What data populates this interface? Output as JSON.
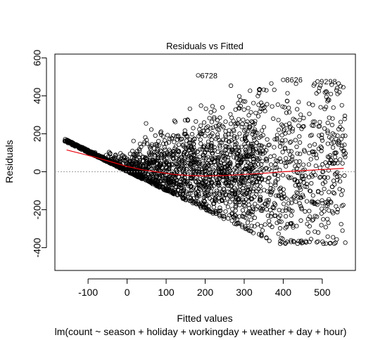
{
  "chart_data": {
    "type": "scatter",
    "title": "Residuals vs Fitted",
    "xlabel": "Fitted values",
    "subtitle": "lm(count ~ season + holiday + workingday + weather + day + hour)",
    "ylabel": "Residuals",
    "xlim": [
      -185,
      585
    ],
    "ylim": [
      -520,
      620
    ],
    "x_ticks": [
      -100,
      0,
      100,
      200,
      300,
      400,
      500
    ],
    "y_ticks": [
      -400,
      -200,
      0,
      200,
      400,
      600
    ],
    "reference_line": 0,
    "smoother": {
      "color": "#e8000b",
      "points": [
        [
          -155,
          115
        ],
        [
          -120,
          97
        ],
        [
          -80,
          75
        ],
        [
          -40,
          52
        ],
        [
          0,
          28
        ],
        [
          40,
          10
        ],
        [
          80,
          -2
        ],
        [
          120,
          -14
        ],
        [
          160,
          -20
        ],
        [
          200,
          -22
        ],
        [
          250,
          -20
        ],
        [
          300,
          -14
        ],
        [
          350,
          -8
        ],
        [
          400,
          0
        ],
        [
          450,
          6
        ],
        [
          500,
          12
        ],
        [
          555,
          18
        ]
      ]
    },
    "labeled_points": [
      {
        "x": 182,
        "y": 508,
        "label": "6728"
      },
      {
        "x": 400,
        "y": 484,
        "label": "8626"
      },
      {
        "x": 488,
        "y": 476,
        "label": "9298"
      }
    ]
  }
}
